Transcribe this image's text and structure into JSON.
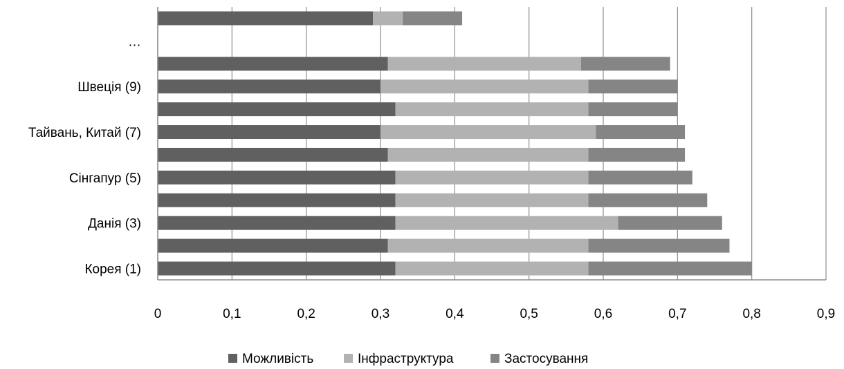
{
  "chart_data": {
    "type": "bar",
    "orientation": "horizontal",
    "stacked": true,
    "categories": [
      "Корея (1)",
      "",
      "Данія (3)",
      "",
      "Сінгапур (5)",
      "",
      "Тайвань, Китай (7)",
      "",
      "Швеція (9)",
      "",
      "…",
      ""
    ],
    "series": [
      {
        "name": "Можливість",
        "color": "#606060",
        "values": [
          0.32,
          0.31,
          0.32,
          0.32,
          0.32,
          0.31,
          0.3,
          0.32,
          0.3,
          0.31,
          null,
          0.29
        ]
      },
      {
        "name": "Інфраструктура",
        "color": "#b2b2b2",
        "values": [
          0.26,
          0.27,
          0.3,
          0.26,
          0.26,
          0.27,
          0.29,
          0.26,
          0.28,
          0.26,
          null,
          0.04
        ]
      },
      {
        "name": "Застосування",
        "color": "#858585",
        "values": [
          0.22,
          0.19,
          0.14,
          0.16,
          0.14,
          0.13,
          0.12,
          0.12,
          0.12,
          0.12,
          null,
          0.08
        ]
      }
    ],
    "xlim": [
      0,
      0.9
    ],
    "xticks": [
      "0",
      "0,1",
      "0,2",
      "0,3",
      "0,4",
      "0,5",
      "0,6",
      "0,7",
      "0,8",
      "0,9"
    ],
    "grid": "vertical",
    "legend_position": "bottom"
  }
}
